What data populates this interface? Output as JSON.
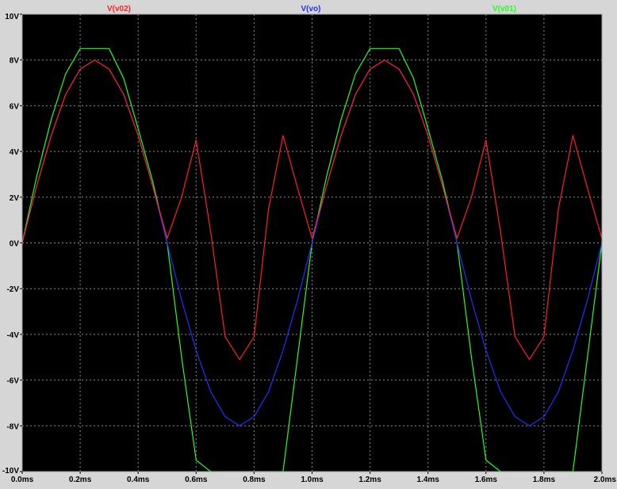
{
  "chart_data": {
    "type": "line",
    "xlabel": "",
    "ylabel": "",
    "xlim": [
      0,
      2.0
    ],
    "ylim": [
      -10,
      10
    ],
    "x_ticks": [
      "0.0ms",
      "0.2ms",
      "0.4ms",
      "0.6ms",
      "0.8ms",
      "1.0ms",
      "1.2ms",
      "1.4ms",
      "1.6ms",
      "1.8ms",
      "2.0ms"
    ],
    "y_ticks": [
      "-10V",
      "-8V",
      "-6V",
      "-4V",
      "-2V",
      "0V",
      "2V",
      "4V",
      "6V",
      "8V",
      "10V"
    ],
    "grid": true,
    "background_color": "#000000",
    "grid_color": "#8a8a8a",
    "legend_position": "top",
    "series": [
      {
        "name": "V(v02)",
        "color": "#ff2020",
        "x": [
          0,
          0.05,
          0.1,
          0.15,
          0.2,
          0.25,
          0.3,
          0.35,
          0.4,
          0.45,
          0.5,
          0.55,
          0.6,
          0.65,
          0.7,
          0.75,
          0.8,
          0.85,
          0.9,
          0.95,
          1.0,
          1.05,
          1.1,
          1.15,
          1.2,
          1.25,
          1.3,
          1.35,
          1.4,
          1.45,
          1.5,
          1.55,
          1.6,
          1.65,
          1.7,
          1.75,
          1.8,
          1.85,
          1.9,
          1.95,
          2.0
        ],
        "values": [
          0.0,
          2.5,
          4.7,
          6.5,
          7.6,
          8.0,
          7.6,
          6.5,
          4.7,
          2.5,
          0.2,
          2.0,
          4.5,
          0.5,
          -4.1,
          -5.1,
          -4.1,
          1.5,
          4.7,
          2.4,
          0.2,
          2.5,
          4.7,
          6.5,
          7.6,
          8.0,
          7.6,
          6.5,
          4.7,
          2.5,
          0.2,
          2.0,
          4.5,
          0.5,
          -4.1,
          -5.1,
          -4.1,
          1.5,
          4.7,
          2.4,
          0.2
        ]
      },
      {
        "name": "V(vo)",
        "color": "#2030ff",
        "x": [
          0,
          0.05,
          0.1,
          0.15,
          0.2,
          0.25,
          0.3,
          0.35,
          0.4,
          0.45,
          0.5,
          0.55,
          0.6,
          0.65,
          0.7,
          0.75,
          0.8,
          0.85,
          0.9,
          0.95,
          1.0,
          1.05,
          1.1,
          1.15,
          1.2,
          1.25,
          1.3,
          1.35,
          1.4,
          1.45,
          1.5,
          1.55,
          1.6,
          1.65,
          1.7,
          1.75,
          1.8,
          1.85,
          1.9,
          1.95,
          2.0
        ],
        "values": [
          0.0,
          2.5,
          4.7,
          6.5,
          7.6,
          8.0,
          7.6,
          6.5,
          4.7,
          2.5,
          0.0,
          -2.5,
          -4.7,
          -6.5,
          -7.6,
          -8.0,
          -7.6,
          -6.5,
          -4.7,
          -2.5,
          0.0,
          2.5,
          4.7,
          6.5,
          7.6,
          8.0,
          7.6,
          6.5,
          4.7,
          2.5,
          0.0,
          -2.5,
          -4.7,
          -6.5,
          -7.6,
          -8.0,
          -7.6,
          -6.5,
          -4.7,
          -2.5,
          0.0
        ]
      },
      {
        "name": "V(v01)",
        "color": "#20ff20",
        "x": [
          0,
          0.05,
          0.1,
          0.15,
          0.2,
          0.25,
          0.3,
          0.35,
          0.4,
          0.45,
          0.5,
          0.55,
          0.6,
          0.65,
          0.7,
          0.75,
          0.8,
          0.85,
          0.9,
          0.95,
          1.0,
          1.05,
          1.1,
          1.15,
          1.2,
          1.25,
          1.3,
          1.35,
          1.4,
          1.45,
          1.5,
          1.55,
          1.6,
          1.65,
          1.7,
          1.75,
          1.8,
          1.85,
          1.9,
          1.95,
          2.0
        ],
        "values": [
          0.0,
          2.9,
          5.4,
          7.4,
          8.5,
          8.5,
          8.5,
          7.2,
          5.0,
          2.7,
          0.0,
          -5.0,
          -9.5,
          -10.0,
          -10.0,
          -10.0,
          -10.0,
          -10.0,
          -10.0,
          -5.0,
          0.0,
          2.9,
          5.4,
          7.4,
          8.5,
          8.5,
          8.5,
          7.2,
          5.0,
          2.7,
          0.0,
          -5.0,
          -9.5,
          -10.0,
          -10.0,
          -10.0,
          -10.0,
          -10.0,
          -10.0,
          -5.0,
          0.0
        ]
      }
    ]
  }
}
